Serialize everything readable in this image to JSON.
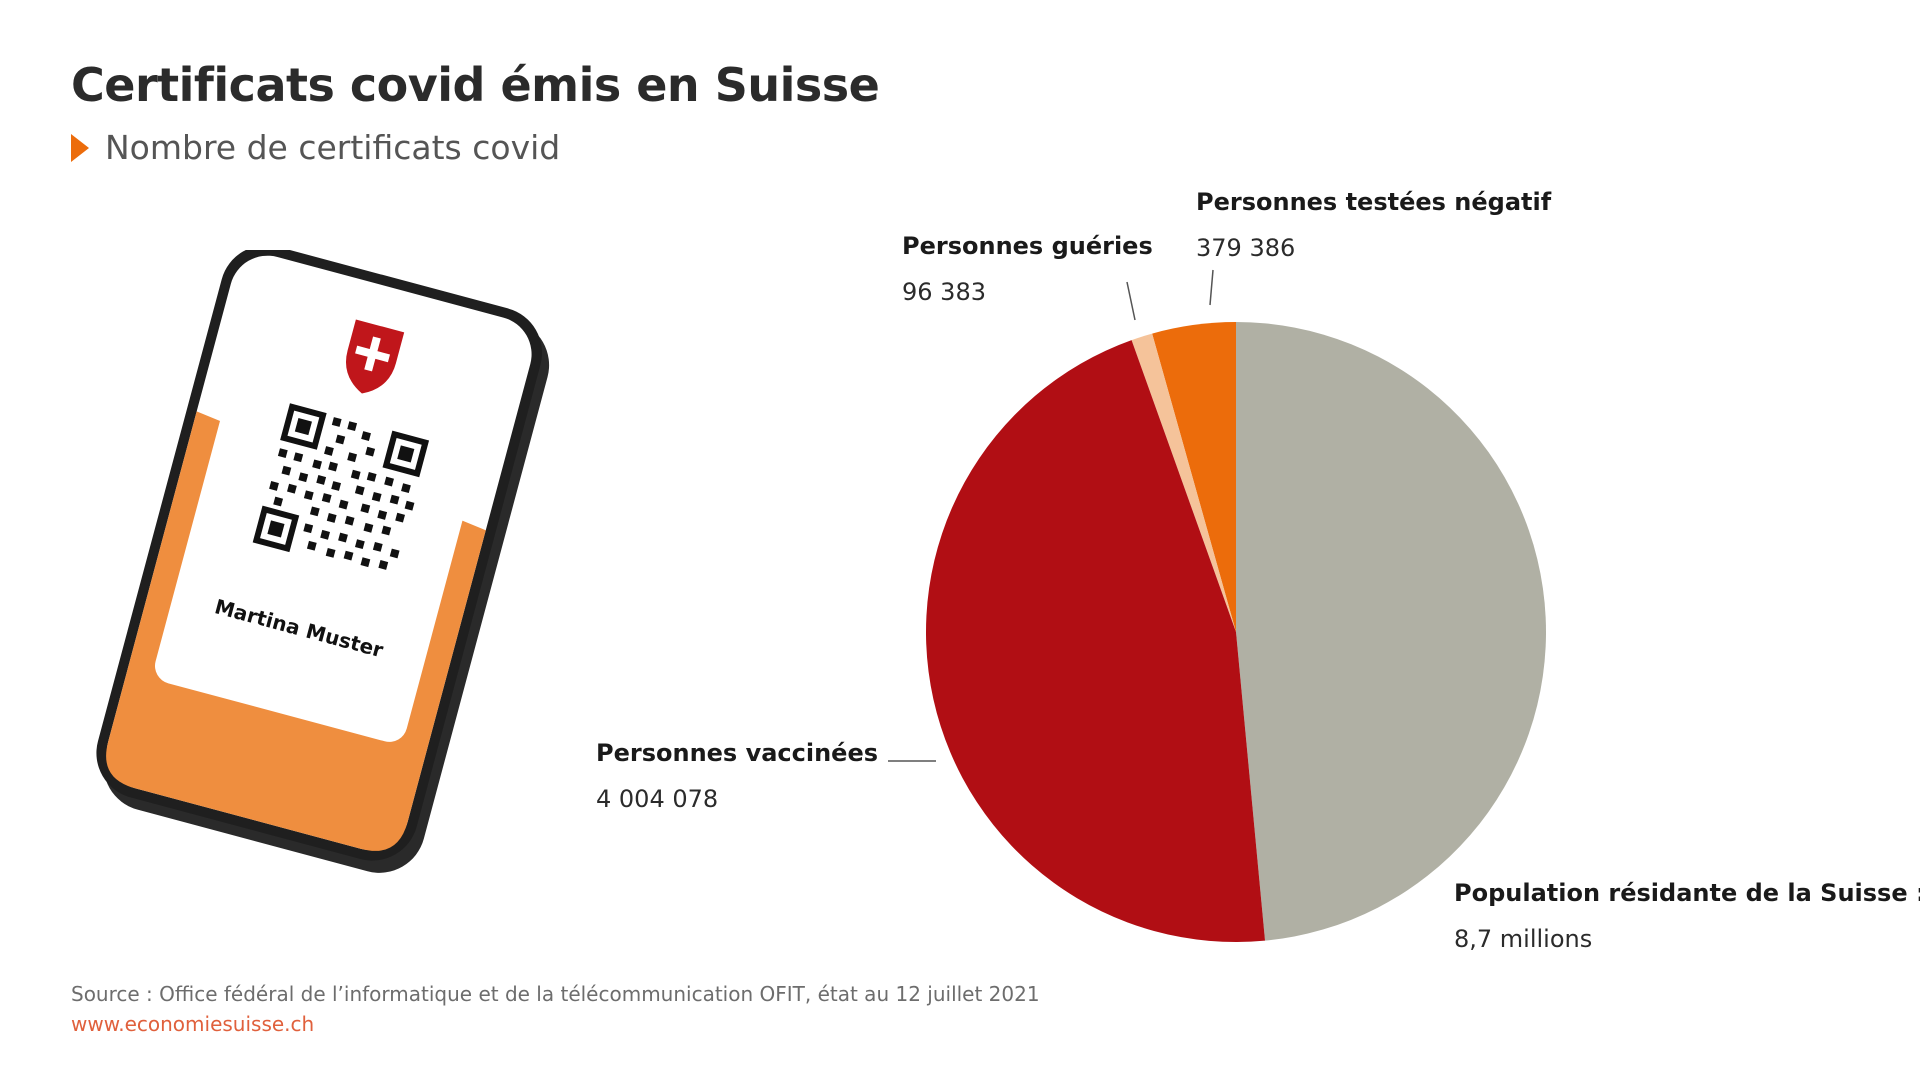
{
  "header": {
    "title": "Certificats covid émis en Suisse",
    "subtitle": "Nombre de certificats covid"
  },
  "illustration": {
    "name_on_certificate": "Martina Muster",
    "icons": [
      "smartphone-icon",
      "swiss-shield-icon",
      "qr-code-icon"
    ]
  },
  "chart_data": {
    "type": "pie",
    "title": "Certificats covid émis en Suisse",
    "subtitle": "Nombre de certificats covid",
    "total_label": "Population résidante de la Suisse :",
    "total_value_text": "8,7 millions",
    "total": 8700000,
    "slices": [
      {
        "name": "Personnes testées négatif",
        "value": 379386,
        "value_text": "379 386",
        "color": "#ec6c0b"
      },
      {
        "name": "Personnes guéries",
        "value": 96383,
        "value_text": "96 383",
        "color": "#f5c39a"
      },
      {
        "name": "Personnes vaccinées",
        "value": 4004078,
        "value_text": "4 004 078",
        "color": "#b10e14"
      },
      {
        "name": "Population résidante de la Suisse :",
        "value_text": "8,7 millions",
        "color": "#b0b0a4"
      }
    ]
  },
  "footer": {
    "source": "Source : Office fédéral de l’informatique et de la télécommunication OFIT, état au 12 juillet 2021",
    "website": "www.economiesuisse.ch"
  },
  "colors": {
    "accent": "#ec6c0b",
    "vaccinated": "#b10e14",
    "recovered": "#f5c39a",
    "tested": "#ec6c0b",
    "population": "#b0b0a4",
    "website": "#e0603c"
  }
}
